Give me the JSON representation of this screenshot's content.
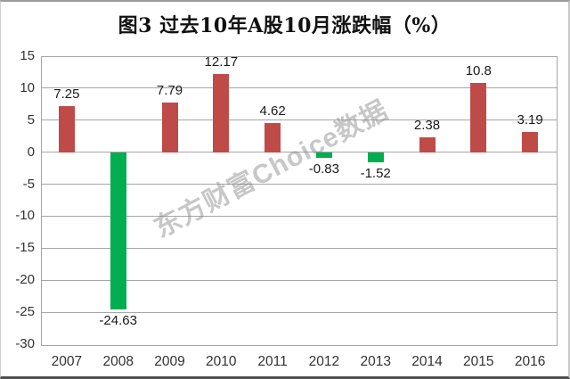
{
  "chart_data": {
    "type": "bar",
    "title": "图3 过去10年A股10月涨跌幅（%）",
    "categories": [
      "2007",
      "2008",
      "2009",
      "2010",
      "2011",
      "2012",
      "2013",
      "2014",
      "2015",
      "2016"
    ],
    "values": [
      7.25,
      -24.63,
      7.79,
      12.17,
      4.62,
      -0.83,
      -1.52,
      2.38,
      10.8,
      3.19
    ],
    "value_labels": [
      "7.25",
      "-24.63",
      "7.79",
      "12.17",
      "4.62",
      "-0.83",
      "-1.52",
      "2.38",
      "10.8",
      "3.19"
    ],
    "xlabel": "",
    "ylabel": "",
    "ylim": [
      -30,
      15
    ],
    "yticks": [
      15,
      10,
      5,
      0,
      -5,
      -10,
      -15,
      -20,
      -25,
      -30
    ],
    "grid": true,
    "legend": "none",
    "colors": {
      "bar_positive": "#BE4B48",
      "bar_negative": "#00AE50",
      "gridline": "#A6A6A6",
      "tick_text": "#333333",
      "title_text": "#111111",
      "watermark_text": "#828282"
    },
    "watermark": "东方财富Choice数据"
  }
}
